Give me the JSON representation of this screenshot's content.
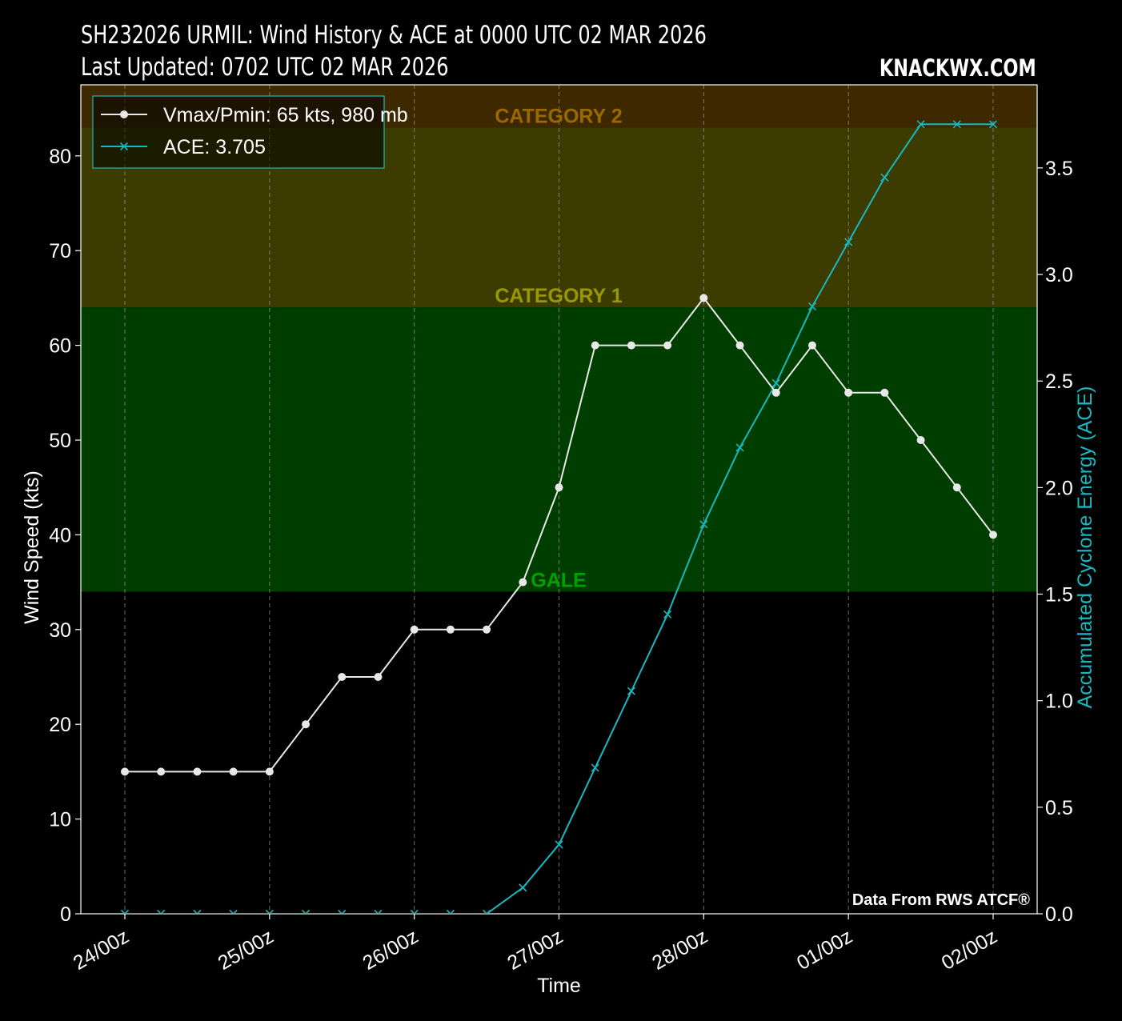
{
  "header": {
    "title_line1": "SH232026 URMIL: Wind History & ACE at 0000 UTC 02 MAR 2026",
    "title_line2": "Last Updated: 0702 UTC 02 MAR 2026",
    "brand": "KNACKWX.COM",
    "source_note": "Data From RWS ATCF®"
  },
  "colors": {
    "background": "#000000",
    "wind_line": "#e8e8e8",
    "ace_line": "#17b8c0",
    "band_category2": "#3d2800",
    "band_category1": "#3d3c00",
    "band_gale": "#003e00",
    "label_category2": "#9a6a00",
    "label_category1": "#9a9800",
    "label_gale": "#00a000"
  },
  "chart_data": {
    "type": "line",
    "xlabel": "Time",
    "ylabel": "Wind Speed (kts)",
    "y2label": "Accumulated Cyclone Energy (ACE)",
    "ylim": [
      0,
      87.5
    ],
    "y2lim": [
      0,
      3.89
    ],
    "yticks": [
      0,
      10,
      20,
      30,
      40,
      50,
      60,
      70,
      80
    ],
    "y2ticks": [
      "0.0",
      "0.5",
      "1.0",
      "1.5",
      "2.0",
      "2.5",
      "3.0",
      "3.5"
    ],
    "x_tick_labels": [
      "24/00z",
      "25/00z",
      "26/00z",
      "27/00z",
      "28/00z",
      "01/00z",
      "02/00z"
    ],
    "x_hours": [
      0,
      6,
      12,
      18,
      24,
      30,
      36,
      42,
      48,
      54,
      60,
      66,
      72,
      78,
      84,
      90,
      96,
      102,
      108,
      114,
      120,
      126,
      132,
      138,
      144
    ],
    "grid": true,
    "legend_position": "top-left",
    "bands": [
      {
        "label": "CATEGORY 2",
        "from": 83,
        "to": 87.5
      },
      {
        "label": "CATEGORY 1",
        "from": 64,
        "to": 83
      },
      {
        "label": "GALE",
        "from": 34,
        "to": 64
      }
    ],
    "series": [
      {
        "name": "Vmax/Pmin: 65 kts, 980 mb",
        "axis": "left",
        "values": [
          15,
          15,
          15,
          15,
          15,
          20,
          25,
          25,
          30,
          30,
          30,
          35,
          45,
          60,
          60,
          60,
          65,
          60,
          55,
          60,
          55,
          55,
          50,
          45,
          40
        ]
      },
      {
        "name": "ACE: 3.705",
        "axis": "right",
        "values": [
          0,
          0,
          0,
          0,
          0,
          0,
          0,
          0,
          0,
          0,
          0,
          0.1225,
          0.325,
          0.685,
          1.045,
          1.405,
          1.8275,
          2.1875,
          2.49,
          2.85,
          3.1525,
          3.455,
          3.705,
          3.705,
          3.705
        ]
      }
    ]
  }
}
